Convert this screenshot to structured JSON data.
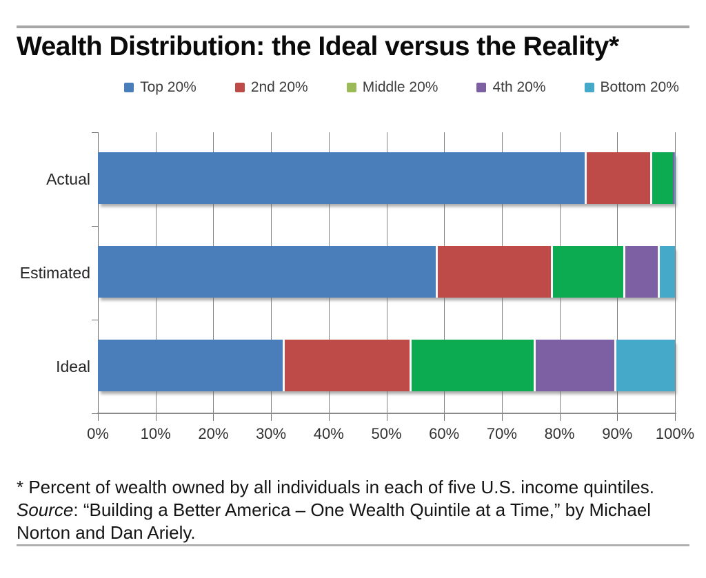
{
  "header": {
    "title": "Wealth Distribution: the Ideal versus the Reality*"
  },
  "legend": {
    "items": [
      {
        "label": "Top 20%",
        "color": "#4a7ebb"
      },
      {
        "label": "2nd 20%",
        "color": "#bf4b48"
      },
      {
        "label": "Middle 20%",
        "color": "#9bbb59"
      },
      {
        "label": "4th 20%",
        "color": "#7d60a4"
      },
      {
        "label": "Bottom 20%",
        "color": "#45a9c9"
      }
    ]
  },
  "chart_data": {
    "type": "bar",
    "variant": "horizontal-stacked",
    "title": "Wealth Distribution: the Ideal versus the Reality*",
    "categories": [
      "Actual",
      "Estimated",
      "Ideal"
    ],
    "series": [
      {
        "name": "Top 20%",
        "color": "#4a7ebb",
        "values": [
          84.4,
          58.5,
          32.0
        ]
      },
      {
        "name": "2nd 20%",
        "color": "#bf4b48",
        "values": [
          11.3,
          20.0,
          22.0
        ]
      },
      {
        "name": "Middle 20%",
        "color": "#0cab51",
        "legend_color": "#9bbb59",
        "values": [
          3.9,
          12.5,
          21.5
        ]
      },
      {
        "name": "4th 20%",
        "color": "#7d60a4",
        "values": [
          0.3,
          6.0,
          14.0
        ]
      },
      {
        "name": "Bottom 20%",
        "color": "#45a9c9",
        "values": [
          0.1,
          3.0,
          10.5
        ]
      }
    ],
    "xlim": [
      0,
      100
    ],
    "x_ticks": [
      "0%",
      "10%",
      "20%",
      "30%",
      "40%",
      "50%",
      "60%",
      "70%",
      "80%",
      "90%",
      "100%"
    ],
    "grid": "vertical",
    "legend_position": "top",
    "units": "percent of total wealth"
  },
  "footnote": {
    "line1": "* Percent of wealth owned by all individuals in each of five U.S. income quintiles.",
    "source_label": "Source",
    "source_text": ": “Building a Better America – One Wealth Quintile at a Time,” by Michael",
    "line3": "Norton and Dan Ariely."
  }
}
